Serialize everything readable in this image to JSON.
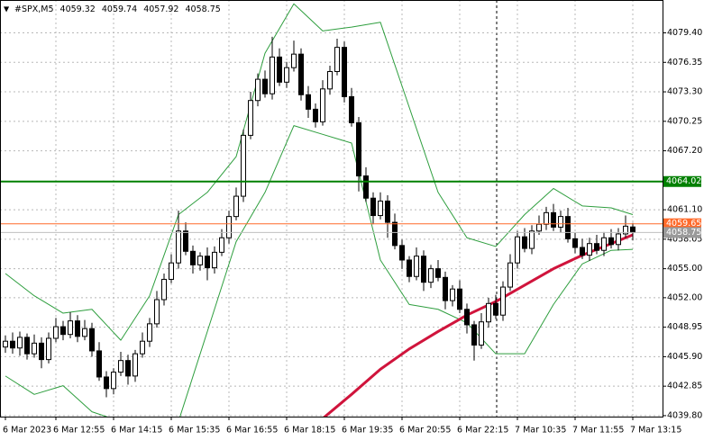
{
  "chart_data": {
    "type": "candlestick",
    "symbol": "#SPX,M5",
    "categories": [
      "6 Mar 2023",
      null,
      null,
      null,
      null,
      null,
      null,
      "6 Mar 12:55",
      null,
      null,
      null,
      null,
      null,
      null,
      null,
      "6 Mar 14:15",
      null,
      null,
      null,
      null,
      null,
      null,
      null,
      "6 Mar 15:35",
      null,
      null,
      null,
      null,
      null,
      null,
      null,
      "6 Mar 16:55",
      null,
      null,
      null,
      null,
      null,
      null,
      null,
      "6 Mar 18:15",
      null,
      null,
      null,
      null,
      null,
      null,
      null,
      "6 Mar 19:35",
      null,
      null,
      null,
      null,
      null,
      null,
      null,
      "6 Mar 20:55",
      null,
      null,
      null,
      null,
      null,
      null,
      null,
      "6 Mar 22:15",
      null,
      null,
      null,
      null,
      null,
      null,
      null,
      "7 Mar 10:35",
      null,
      null,
      null,
      null,
      null,
      null,
      null,
      "7 Mar 11:55",
      null,
      null,
      null,
      null,
      null,
      null,
      null,
      "7 Mar 13:15"
    ],
    "open": [
      4046.9,
      4047.5,
      4046.8,
      4047.9,
      4046.2,
      4047.3,
      4045.6,
      4047.8,
      4049.0,
      4048.2,
      4049.6,
      4048.0,
      4048.8,
      4046.5,
      4043.8,
      4042.6,
      4044.3,
      4045.5,
      4043.9,
      4046.2,
      4047.5,
      4049.3,
      4051.8,
      4053.9,
      4055.6,
      4058.9,
      4056.8,
      4055.4,
      4056.3,
      4055.1,
      4056.7,
      4058.2,
      4060.4,
      4062.5,
      4068.8,
      4072.4,
      4074.6,
      4073.1,
      4076.9,
      4074.3,
      4075.8,
      4077.2,
      4073.0,
      4071.5,
      4070.2,
      4073.6,
      4075.4,
      4077.9,
      4072.8,
      4070.1,
      4064.6,
      4062.3,
      4060.5,
      4062.0,
      4059.8,
      4057.4,
      4055.9,
      4054.2,
      4056.3,
      4053.6,
      4055.0,
      4054.1,
      4051.7,
      4052.9,
      4050.8,
      4049.2,
      4047.1,
      4049.5,
      4051.4,
      4050.2,
      4053.1,
      4055.6,
      4058.3,
      4057.1,
      4058.9,
      4059.6,
      4060.8,
      4059.3,
      4060.4,
      4058.1,
      4057.2,
      4056.4,
      4057.6,
      4056.9,
      4058.2,
      4057.5,
      4058.6,
      4059.32
    ],
    "high": [
      4048.1,
      4048.4,
      4048.5,
      4048.3,
      4048.2,
      4047.9,
      4048.4,
      4049.9,
      4049.6,
      4050.5,
      4050.2,
      4049.7,
      4049.4,
      4047.4,
      4044.4,
      4044.7,
      4046.4,
      4046.1,
      4046.6,
      4048.4,
      4049.9,
      4052.7,
      4054.5,
      4056.5,
      4061.0,
      4059.8,
      4057.4,
      4056.7,
      4057.2,
      4057.3,
      4059.1,
      4061.0,
      4063.4,
      4069.4,
      4073.3,
      4075.2,
      4075.5,
      4079.0,
      4077.8,
      4076.4,
      4078.6,
      4077.8,
      4073.9,
      4072.1,
      4074.5,
      4076.0,
      4078.8,
      4078.5,
      4073.7,
      4070.7,
      4065.5,
      4062.9,
      4062.9,
      4062.6,
      4060.7,
      4058.0,
      4056.3,
      4057.2,
      4056.9,
      4055.4,
      4055.9,
      4054.7,
      4053.3,
      4053.8,
      4051.4,
      4049.6,
      4050.4,
      4052.0,
      4052.3,
      4053.7,
      4056.5,
      4058.9,
      4059.2,
      4059.5,
      4060.5,
      4061.4,
      4061.7,
      4061.0,
      4061.3,
      4058.7,
      4058.1,
      4058.2,
      4058.5,
      4058.8,
      4059.1,
      4059.2,
      4060.5,
      4059.74
    ],
    "low": [
      4046.3,
      4046.2,
      4046.0,
      4045.6,
      4045.8,
      4044.7,
      4045.2,
      4047.4,
      4047.6,
      4047.8,
      4047.4,
      4047.6,
      4045.9,
      4043.4,
      4041.7,
      4042.0,
      4043.9,
      4043.0,
      4043.3,
      4045.8,
      4046.9,
      4048.9,
      4051.2,
      4053.5,
      4055.0,
      4056.4,
      4054.5,
      4054.8,
      4053.8,
      4054.5,
      4056.3,
      4057.6,
      4060.0,
      4061.9,
      4068.4,
      4071.8,
      4072.7,
      4072.5,
      4073.9,
      4073.7,
      4075.4,
      4072.4,
      4070.6,
      4069.6,
      4069.8,
      4073.0,
      4075.0,
      4072.2,
      4069.7,
      4063.0,
      4061.9,
      4059.6,
      4060.1,
      4058.2,
      4057.0,
      4055.0,
      4053.6,
      4053.8,
      4052.7,
      4053.0,
      4053.7,
      4050.8,
      4051.1,
      4050.4,
      4048.3,
      4045.5,
      4046.7,
      4048.9,
      4049.8,
      4049.6,
      4052.7,
      4055.0,
      4056.7,
      4056.5,
      4058.5,
      4059.0,
      4058.9,
      4058.7,
      4057.7,
      4056.6,
      4056.0,
      4055.8,
      4056.5,
      4056.3,
      4057.1,
      4056.9,
      4058.2,
      4057.92
    ],
    "close": [
      4047.5,
      4046.8,
      4047.9,
      4046.2,
      4047.3,
      4045.6,
      4047.8,
      4049.0,
      4048.2,
      4049.6,
      4048.0,
      4048.8,
      4046.5,
      4043.8,
      4042.6,
      4044.3,
      4045.5,
      4043.9,
      4046.2,
      4047.5,
      4049.3,
      4051.8,
      4053.9,
      4055.6,
      4058.9,
      4056.8,
      4055.4,
      4056.3,
      4055.1,
      4056.7,
      4058.2,
      4060.4,
      4062.5,
      4068.8,
      4072.4,
      4074.6,
      4073.1,
      4076.9,
      4074.3,
      4075.8,
      4077.2,
      4073.0,
      4071.5,
      4070.2,
      4073.6,
      4075.4,
      4077.9,
      4072.8,
      4070.1,
      4064.6,
      4062.3,
      4060.5,
      4062.0,
      4059.8,
      4057.4,
      4055.9,
      4054.2,
      4056.3,
      4053.6,
      4055.0,
      4054.1,
      4051.7,
      4052.9,
      4050.8,
      4049.2,
      4047.1,
      4049.5,
      4051.4,
      4050.2,
      4053.1,
      4055.6,
      4058.3,
      4057.1,
      4058.9,
      4059.6,
      4060.8,
      4059.3,
      4060.4,
      4058.1,
      4057.2,
      4056.4,
      4057.6,
      4056.9,
      4058.2,
      4057.5,
      4058.6,
      4059.4,
      4058.75
    ],
    "ylim": [
      4039.7,
      4082.8
    ],
    "yticks": [
      {
        "value": 4079.4,
        "label": "4079.40"
      },
      {
        "value": 4076.35,
        "label": "4076.35"
      },
      {
        "value": 4073.3,
        "label": "4073.30"
      },
      {
        "value": 4070.25,
        "label": "4070.25"
      },
      {
        "value": 4067.2,
        "label": "4067.20"
      },
      {
        "value": 4061.1,
        "label": "4061.10"
      },
      {
        "value": 4058.05,
        "label": "4058.05"
      },
      {
        "value": 4055.0,
        "label": "4055.00"
      },
      {
        "value": 4052.0,
        "label": "4052.00"
      },
      {
        "value": 4048.95,
        "label": "4048.95"
      },
      {
        "value": 4045.9,
        "label": "4045.90"
      },
      {
        "value": 4042.85,
        "label": "4042.85"
      },
      {
        "value": 4039.8,
        "label": "4039.80"
      }
    ],
    "grid": true,
    "indicators": [
      {
        "color": "#2e9e3e",
        "width": 1,
        "index": [
          0,
          4,
          8,
          12,
          16,
          20,
          24,
          28,
          32,
          36,
          40,
          44,
          48,
          52,
          56,
          60,
          64,
          68,
          72,
          76,
          80,
          84,
          87
        ],
        "values": [
          4054.5,
          4052.2,
          4050.4,
          4050.8,
          4047.6,
          4052.2,
          4060.6,
          4062.9,
          4066.6,
          4077.3,
          4082.4,
          4079.6,
          4080.0,
          4080.5,
          4071.7,
          4062.9,
          4058.2,
          4057.3,
          4060.6,
          4063.3,
          4061.5,
          4061.3,
          4060.6
        ]
      },
      {
        "color": "#2e9e3e",
        "width": 1,
        "index": [
          0,
          4,
          8,
          12,
          16,
          20,
          24,
          28,
          32,
          36,
          40,
          44,
          48,
          52,
          56,
          60,
          64,
          68,
          72,
          76,
          80,
          84,
          87
        ],
        "values": [
          4043.9,
          4042.0,
          4042.9,
          4040.2,
          4039.2,
          4039.2,
          4039.2,
          4048.5,
          4057.8,
          4062.9,
          4069.8,
          4068.9,
          4068.0,
          4055.9,
          4051.3,
          4050.8,
          4049.4,
          4046.2,
          4046.2,
          4051.3,
          4055.5,
          4056.9,
          4057.0
        ]
      },
      {
        "color": "#d0143c",
        "width": 3,
        "index": [
          44,
          48,
          52,
          56,
          60,
          64,
          68,
          72,
          76,
          80,
          84,
          87
        ],
        "values": [
          4039.5,
          4042.0,
          4044.6,
          4046.7,
          4048.5,
          4050.2,
          4051.6,
          4053.3,
          4055.0,
          4056.4,
          4057.6,
          4058.5
        ]
      }
    ],
    "hlines": [
      {
        "value": 4064.02,
        "color": "#008000",
        "tag_color": "#008000"
      },
      {
        "value": 4059.65,
        "color": "#ff6a2a",
        "tag_color": "#ff6a2a"
      },
      {
        "value": 4058.75,
        "color": "#c0c0c0",
        "tag_color": "#9a9a9a"
      }
    ]
  }
}
